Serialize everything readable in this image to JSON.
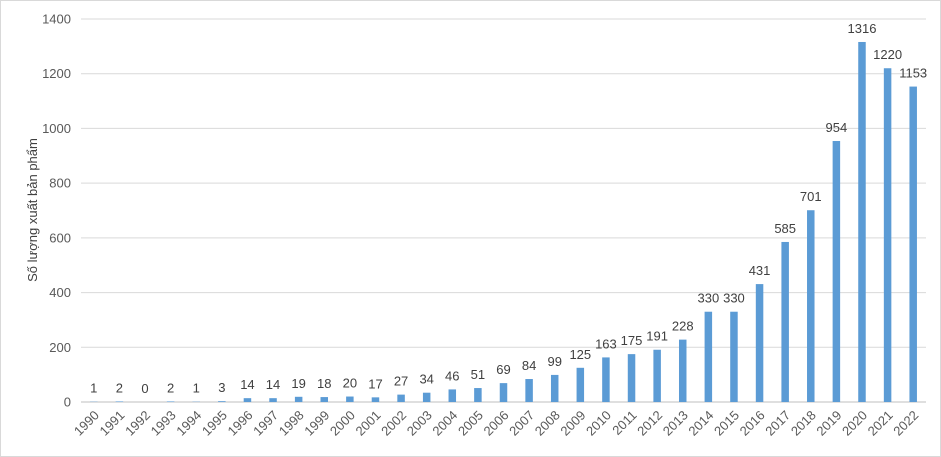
{
  "chart_data": {
    "type": "bar",
    "title": "",
    "xlabel": "",
    "ylabel": "Số lượng xuất bản phẩm",
    "ylim": [
      0,
      1400
    ],
    "yticks": [
      0,
      200,
      400,
      600,
      800,
      1000,
      1200,
      1400
    ],
    "grid": true,
    "legend": "none",
    "bar_color": "#5b9bd5",
    "categories": [
      "1990",
      "1991",
      "1992",
      "1993",
      "1994",
      "1995",
      "1996",
      "1997",
      "1998",
      "1999",
      "2000",
      "2001",
      "2002",
      "2003",
      "2004",
      "2005",
      "2006",
      "2007",
      "2008",
      "2009",
      "2010",
      "2011",
      "2012",
      "2013",
      "2014",
      "2015",
      "2016",
      "2017",
      "2018",
      "2019",
      "2020",
      "2021",
      "2022"
    ],
    "values": [
      1,
      2,
      0,
      2,
      1,
      3,
      14,
      14,
      19,
      18,
      20,
      17,
      27,
      34,
      46,
      51,
      69,
      84,
      99,
      125,
      163,
      175,
      191,
      228,
      330,
      330,
      431,
      585,
      701,
      954,
      1316,
      1220,
      1153
    ]
  }
}
